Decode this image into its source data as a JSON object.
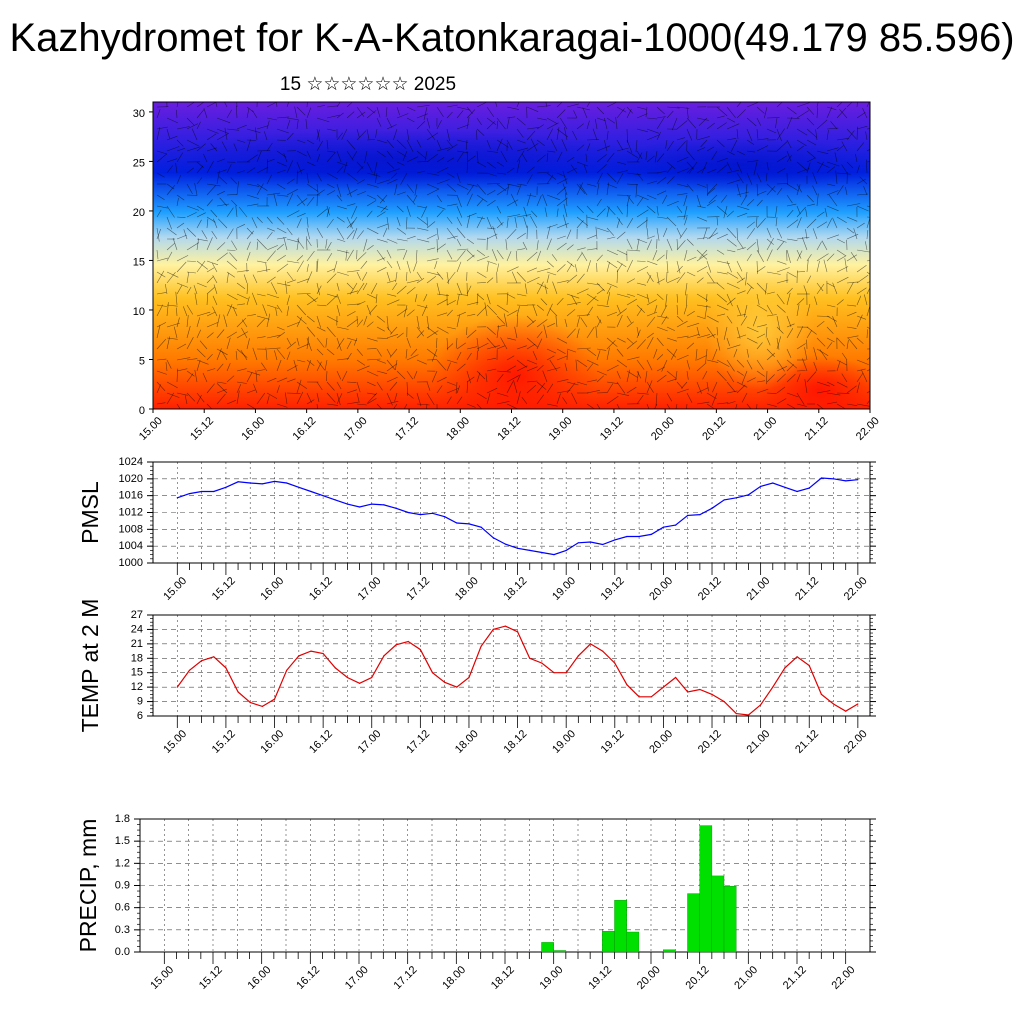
{
  "title": "Kazhydromet for K-A-Katonkaragai-1000(49.179 85.596)",
  "subtitle": "15 ☆☆☆☆☆☆ 2025",
  "x_tick_labels": [
    "15.00",
    "15.12",
    "16.00",
    "16.12",
    "17.00",
    "17.12",
    "18.00",
    "18.12",
    "19.00",
    "19.12",
    "20.00",
    "20.12",
    "21.00",
    "21.12",
    "22.00"
  ],
  "chart_data": [
    {
      "type": "heatmap",
      "name_key": "cross-section",
      "ylim": [
        0,
        31
      ],
      "y_ticks": [
        0,
        5,
        10,
        15,
        20,
        25,
        30
      ],
      "colormap": [
        "#ff2000",
        "#ff7a00",
        "#ffc020",
        "#fff2a0",
        "#b0d8f0",
        "#20a0ff",
        "#0020e0",
        "#6a1ee0"
      ]
    },
    {
      "type": "line",
      "ylabel": "PMSL",
      "ylim": [
        1000,
        1024
      ],
      "y_ticks": [
        1000,
        1004,
        1008,
        1012,
        1016,
        1020,
        1024
      ],
      "color": "#0000ff",
      "hours": [
        0,
        3,
        6,
        9,
        12,
        15,
        18,
        21,
        24,
        27,
        30,
        33,
        36,
        39,
        42,
        45,
        48,
        51,
        54,
        57,
        60,
        63,
        66,
        69,
        72,
        75,
        78,
        81,
        84,
        87,
        90,
        93,
        96,
        99,
        102,
        105,
        108,
        111,
        114,
        117,
        120,
        123,
        126,
        129,
        132,
        135,
        138,
        141,
        144,
        147,
        150,
        153,
        156,
        159,
        162,
        165,
        168
      ],
      "values": [
        1015.5,
        1016.5,
        1017,
        1017,
        1018,
        1019.3,
        1019,
        1018.8,
        1019.4,
        1019,
        1018,
        1017,
        1016,
        1015,
        1014,
        1013.3,
        1014,
        1013.8,
        1013,
        1012,
        1011.5,
        1011.8,
        1011,
        1009.5,
        1009.3,
        1008.5,
        1006,
        1004.5,
        1003.5,
        1003,
        1002.5,
        1002,
        1003,
        1004.8,
        1005,
        1004.4,
        1005.5,
        1006.3,
        1006.3,
        1006.8,
        1008.5,
        1009,
        1011.3,
        1011.5,
        1013,
        1015,
        1015.5,
        1016.2,
        1018.2,
        1019,
        1018,
        1017,
        1017.8,
        1020.2,
        1020,
        1019.5,
        1019.8
      ]
    },
    {
      "type": "line",
      "ylabel": "TEMP at 2 M",
      "ylim": [
        6,
        27
      ],
      "y_ticks": [
        6,
        9,
        12,
        15,
        18,
        21,
        24,
        27
      ],
      "color": "#e00000",
      "hours": [
        0,
        3,
        6,
        9,
        12,
        15,
        18,
        21,
        24,
        27,
        30,
        33,
        36,
        39,
        42,
        45,
        48,
        51,
        54,
        57,
        60,
        63,
        66,
        69,
        72,
        75,
        78,
        81,
        84,
        87,
        90,
        93,
        96,
        99,
        102,
        105,
        108,
        111,
        114,
        117,
        120,
        123,
        126,
        129,
        132,
        135,
        138,
        141,
        144,
        147,
        150,
        153,
        156,
        159,
        162,
        165,
        168
      ],
      "values": [
        12,
        15.5,
        17.5,
        18.3,
        16,
        11,
        8.8,
        8,
        9.5,
        15.5,
        18.5,
        19.5,
        19,
        16,
        14,
        12.8,
        14,
        18.5,
        20.8,
        21.5,
        19.8,
        15,
        13,
        12,
        14,
        20.5,
        24,
        24.7,
        23.5,
        18,
        17,
        15,
        15,
        18.5,
        21,
        19.5,
        17,
        12.5,
        10,
        10,
        12,
        14,
        11,
        11.5,
        10.5,
        9,
        6.5,
        6.2,
        8.3,
        12,
        16,
        18.3,
        16.5,
        10.5,
        8.5,
        7,
        8.5
      ]
    },
    {
      "type": "bar",
      "ylabel": "PRECIP, mm",
      "ylim": [
        0,
        1.8
      ],
      "y_ticks": [
        "0.0",
        "0.3",
        "0.6",
        "0.9",
        "1.2",
        "1.5",
        "1.8"
      ],
      "color": "#00e000",
      "hours": [
        0,
        3,
        6,
        9,
        12,
        15,
        18,
        21,
        24,
        27,
        30,
        33,
        36,
        39,
        42,
        45,
        48,
        51,
        54,
        57,
        60,
        63,
        66,
        69,
        72,
        75,
        78,
        81,
        84,
        87,
        90,
        93,
        96,
        99,
        102,
        105,
        108,
        111,
        114,
        117,
        120,
        123,
        126,
        129,
        132,
        135,
        138,
        141,
        144,
        147,
        150,
        153,
        156,
        159,
        162,
        165
      ],
      "values": [
        0,
        0,
        0,
        0,
        0,
        0,
        0,
        0,
        0,
        0,
        0,
        0,
        0,
        0,
        0,
        0,
        0,
        0,
        0,
        0,
        0,
        0,
        0,
        0,
        0,
        0,
        0,
        0,
        0,
        0,
        0,
        0.13,
        0.02,
        0,
        0,
        0,
        0.28,
        0.7,
        0.27,
        0,
        0,
        0.03,
        0,
        0.79,
        1.71,
        1.03,
        0.89,
        0,
        0,
        0,
        0,
        0,
        0,
        0,
        0,
        0
      ]
    }
  ]
}
